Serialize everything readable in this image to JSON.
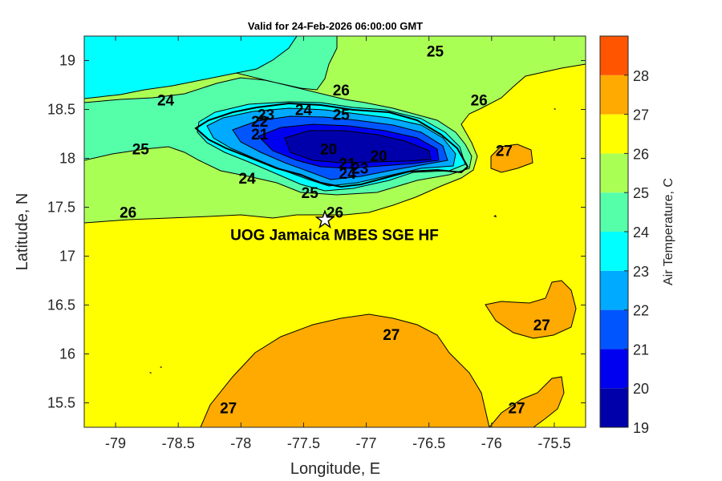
{
  "title": "Valid for 24-Feb-2026 06:00:00 GMT",
  "map": {
    "xlabel": "Longitude, E",
    "ylabel": "Latitude, N",
    "xlim": [
      -79.25,
      -75.25
    ],
    "ylim": [
      15.25,
      19.25
    ],
    "xticks": [
      "-79",
      "-78.5",
      "-78",
      "-77.5",
      "-77",
      "-76.5",
      "-76",
      "-75.5"
    ],
    "yticks": [
      "19",
      "18.5",
      "18",
      "17.5",
      "17",
      "16.5",
      "16",
      "15.5"
    ]
  },
  "colorbar": {
    "label": "Air Temperature, C",
    "ticks": [
      "28",
      "27",
      "26",
      "25",
      "24",
      "23",
      "22",
      "21",
      "20",
      "19"
    ],
    "levels": [
      {
        "range": [
          19,
          20
        ],
        "color": "#0000aa"
      },
      {
        "range": [
          20,
          21
        ],
        "color": "#0000f0"
      },
      {
        "range": [
          21,
          22
        ],
        "color": "#0055ff"
      },
      {
        "range": [
          22,
          23
        ],
        "color": "#00aaff"
      },
      {
        "range": [
          23,
          24
        ],
        "color": "#00ffff"
      },
      {
        "range": [
          24,
          25
        ],
        "color": "#55ffaa"
      },
      {
        "range": [
          25,
          26
        ],
        "color": "#aaff55"
      },
      {
        "range": [
          26,
          27
        ],
        "color": "#ffff00"
      },
      {
        "range": [
          27,
          28
        ],
        "color": "#ffaa00"
      },
      {
        "range": [
          28,
          29
        ],
        "color": "#ff5500"
      }
    ]
  },
  "contour_labels": [
    {
      "text": "25",
      "lon": -76.45,
      "lat": 19.1
    },
    {
      "text": "24",
      "lon": -78.6,
      "lat": 18.6
    },
    {
      "text": "26",
      "lon": -77.2,
      "lat": 18.7
    },
    {
      "text": "26",
      "lon": -76.1,
      "lat": 18.6
    },
    {
      "text": "23",
      "lon": -77.8,
      "lat": 18.45
    },
    {
      "text": "24",
      "lon": -77.5,
      "lat": 18.5
    },
    {
      "text": "25",
      "lon": -77.2,
      "lat": 18.45
    },
    {
      "text": "22",
      "lon": -77.85,
      "lat": 18.38
    },
    {
      "text": "21",
      "lon": -77.85,
      "lat": 18.25
    },
    {
      "text": "25",
      "lon": -78.8,
      "lat": 18.1
    },
    {
      "text": "20",
      "lon": -77.3,
      "lat": 18.1
    },
    {
      "text": "20",
      "lon": -76.9,
      "lat": 18.03
    },
    {
      "text": "21",
      "lon": -77.15,
      "lat": 17.95
    },
    {
      "text": "27",
      "lon": -75.9,
      "lat": 18.08
    },
    {
      "text": "24",
      "lon": -77.95,
      "lat": 17.8
    },
    {
      "text": "24",
      "lon": -77.15,
      "lat": 17.85
    },
    {
      "text": "23",
      "lon": -77.05,
      "lat": 17.9
    },
    {
      "text": "25",
      "lon": -77.45,
      "lat": 17.65
    },
    {
      "text": "26",
      "lon": -78.9,
      "lat": 17.45
    },
    {
      "text": "26",
      "lon": -77.25,
      "lat": 17.45
    },
    {
      "text": "27",
      "lon": -76.8,
      "lat": 16.2
    },
    {
      "text": "27",
      "lon": -75.6,
      "lat": 16.3
    },
    {
      "text": "27",
      "lon": -78.1,
      "lat": 15.45
    },
    {
      "text": "27",
      "lon": -75.8,
      "lat": 15.45
    }
  ],
  "station": {
    "name": "UOG Jamaica MBES SGE HF",
    "lon": -77.33,
    "lat": 17.37,
    "marker_icon": "star-icon"
  }
}
